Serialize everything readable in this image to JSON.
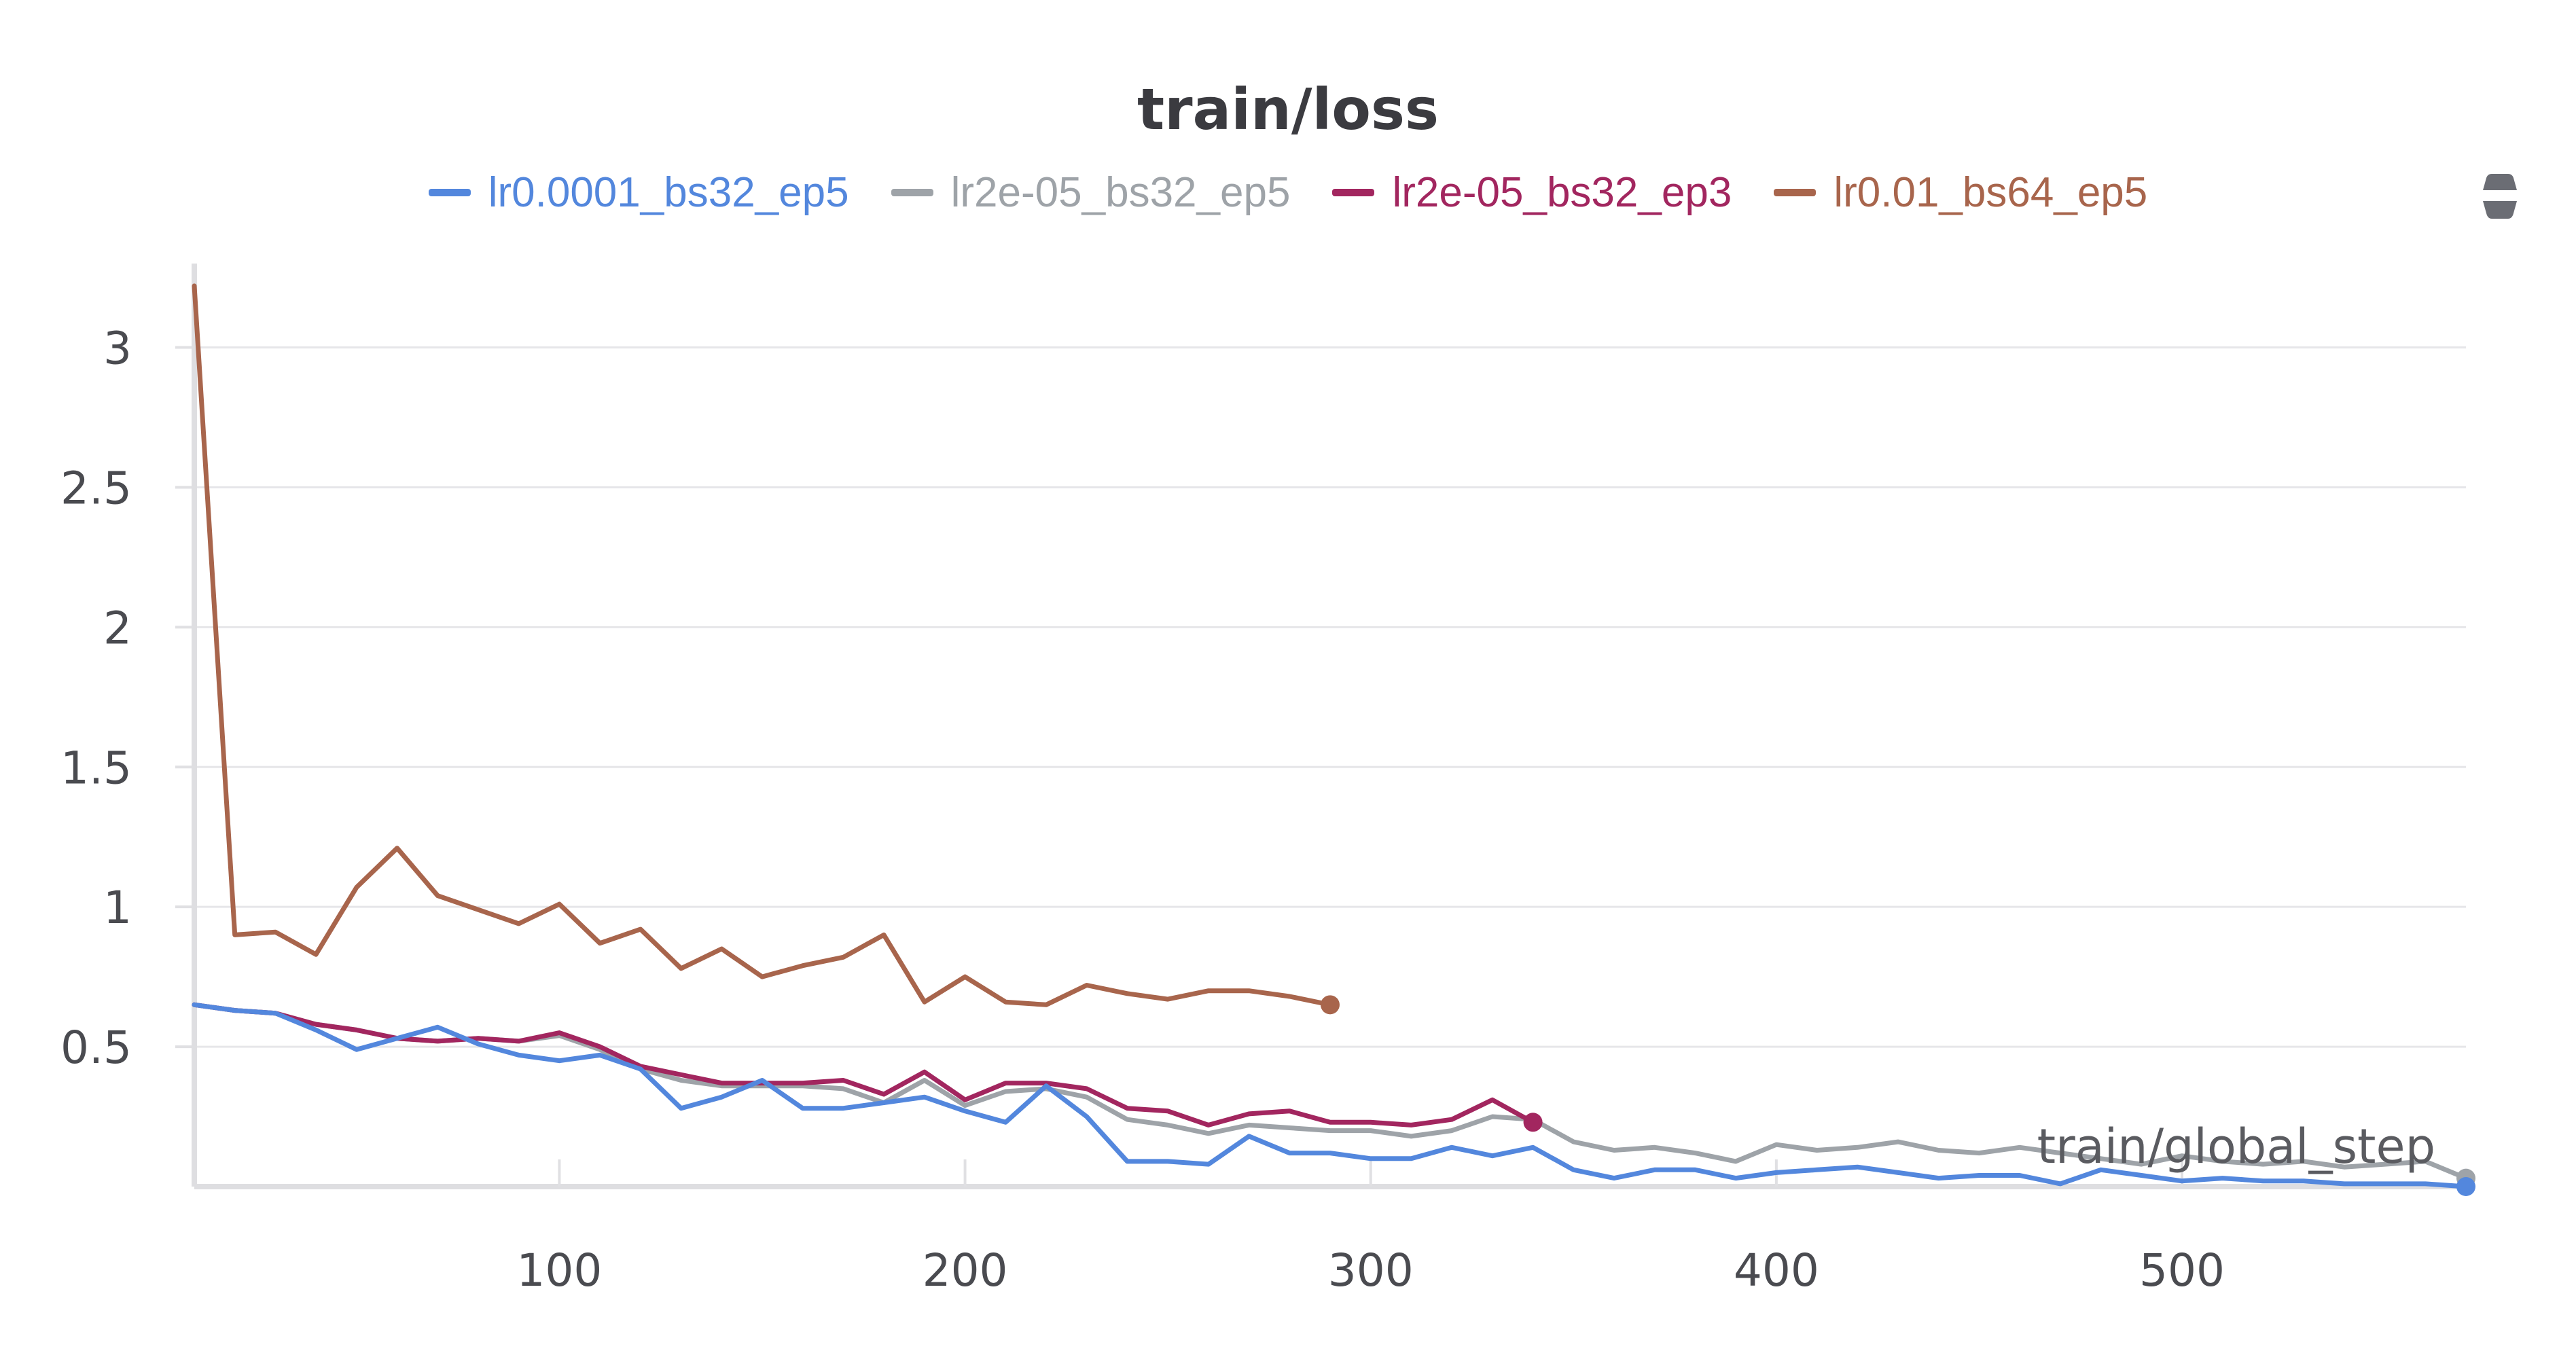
{
  "chart_data": {
    "type": "line",
    "title": "train/loss",
    "xlabel": "train/global_step",
    "ylabel": "",
    "xlim": [
      10,
      570
    ],
    "ylim": [
      0,
      3.3
    ],
    "xticks": [
      100,
      200,
      300,
      400,
      500
    ],
    "yticks": [
      0.5,
      1,
      1.5,
      2,
      2.5,
      3
    ],
    "xtick_labels": [
      "100",
      "200",
      "300",
      "400",
      "500"
    ],
    "ytick_labels": [
      "0.5",
      "1",
      "1.5",
      "2",
      "2.5",
      "3"
    ],
    "grid": true,
    "legend_position": "top",
    "series": [
      {
        "name": "lr0.01_bs64_ep5",
        "color": "#a8654c",
        "x": [
          10,
          20,
          30,
          40,
          50,
          60,
          70,
          80,
          90,
          100,
          110,
          120,
          130,
          140,
          150,
          160,
          170,
          180,
          190,
          200,
          210,
          220,
          230,
          240,
          250,
          260,
          270,
          280,
          290
        ],
        "y": [
          3.22,
          0.9,
          0.91,
          0.83,
          1.07,
          1.21,
          1.04,
          0.99,
          0.94,
          1.01,
          0.87,
          0.92,
          0.78,
          0.85,
          0.75,
          0.79,
          0.82,
          0.9,
          0.66,
          0.75,
          0.66,
          0.65,
          0.72,
          0.69,
          0.67,
          0.7,
          0.7,
          0.68,
          0.65
        ]
      },
      {
        "name": "lr2e-05_bs32_ep5",
        "color": "#9ea3a8",
        "x": [
          10,
          20,
          30,
          40,
          50,
          60,
          70,
          80,
          90,
          100,
          110,
          120,
          130,
          140,
          150,
          160,
          170,
          180,
          190,
          200,
          210,
          220,
          230,
          240,
          250,
          260,
          270,
          280,
          290,
          300,
          310,
          320,
          330,
          340,
          350,
          360,
          370,
          380,
          390,
          400,
          410,
          420,
          430,
          440,
          450,
          460,
          470,
          480,
          490,
          500,
          510,
          520,
          530,
          540,
          550,
          560,
          570
        ],
        "y": [
          0.65,
          0.63,
          0.62,
          0.58,
          0.56,
          0.53,
          0.52,
          0.53,
          0.52,
          0.54,
          0.49,
          0.42,
          0.38,
          0.36,
          0.36,
          0.36,
          0.35,
          0.3,
          0.38,
          0.29,
          0.34,
          0.35,
          0.32,
          0.24,
          0.22,
          0.19,
          0.22,
          0.21,
          0.2,
          0.2,
          0.18,
          0.2,
          0.25,
          0.24,
          0.16,
          0.13,
          0.14,
          0.12,
          0.09,
          0.15,
          0.13,
          0.14,
          0.16,
          0.13,
          0.12,
          0.14,
          0.12,
          0.1,
          0.08,
          0.11,
          0.09,
          0.08,
          0.09,
          0.07,
          0.08,
          0.09,
          0.03
        ]
      },
      {
        "name": "lr2e-05_bs32_ep3",
        "color": "#a2265f",
        "x": [
          10,
          20,
          30,
          40,
          50,
          60,
          70,
          80,
          90,
          100,
          110,
          120,
          130,
          140,
          150,
          160,
          170,
          180,
          190,
          200,
          210,
          220,
          230,
          240,
          250,
          260,
          270,
          280,
          290,
          300,
          310,
          320,
          330,
          340
        ],
        "y": [
          0.65,
          0.63,
          0.62,
          0.58,
          0.56,
          0.53,
          0.52,
          0.53,
          0.52,
          0.55,
          0.5,
          0.43,
          0.4,
          0.37,
          0.37,
          0.37,
          0.38,
          0.33,
          0.41,
          0.31,
          0.37,
          0.37,
          0.35,
          0.28,
          0.27,
          0.22,
          0.26,
          0.27,
          0.23,
          0.23,
          0.22,
          0.24,
          0.31,
          0.23
        ]
      },
      {
        "name": "lr0.0001_bs32_ep5",
        "color": "#5387dd",
        "x": [
          10,
          20,
          30,
          40,
          50,
          60,
          70,
          80,
          90,
          100,
          110,
          120,
          130,
          140,
          150,
          160,
          170,
          180,
          190,
          200,
          210,
          220,
          230,
          240,
          250,
          260,
          270,
          280,
          290,
          300,
          310,
          320,
          330,
          340,
          350,
          360,
          370,
          380,
          390,
          400,
          410,
          420,
          430,
          440,
          450,
          460,
          470,
          480,
          490,
          500,
          510,
          520,
          530,
          540,
          550,
          560,
          570
        ],
        "y": [
          0.65,
          0.63,
          0.62,
          0.56,
          0.49,
          0.53,
          0.57,
          0.51,
          0.47,
          0.45,
          0.47,
          0.42,
          0.28,
          0.32,
          0.38,
          0.28,
          0.28,
          0.3,
          0.32,
          0.27,
          0.23,
          0.36,
          0.25,
          0.09,
          0.09,
          0.08,
          0.18,
          0.12,
          0.12,
          0.1,
          0.1,
          0.14,
          0.11,
          0.14,
          0.06,
          0.03,
          0.06,
          0.06,
          0.03,
          0.05,
          0.06,
          0.07,
          0.05,
          0.03,
          0.04,
          0.04,
          0.01,
          0.06,
          0.04,
          0.02,
          0.03,
          0.02,
          0.02,
          0.01,
          0.01,
          0.01,
          0.0
        ]
      }
    ]
  },
  "legend": {
    "items": [
      {
        "label": "lr0.0001_bs32_ep5",
        "color": "#5387dd"
      },
      {
        "label": "lr2e-05_bs32_ep5",
        "color": "#9ea3a8"
      },
      {
        "label": "lr2e-05_bs32_ep3",
        "color": "#a2265f"
      },
      {
        "label": "lr0.01_bs64_ep5",
        "color": "#a8654c"
      }
    ]
  },
  "legend_toggle": {
    "icon": "expand-collapse-icon"
  }
}
